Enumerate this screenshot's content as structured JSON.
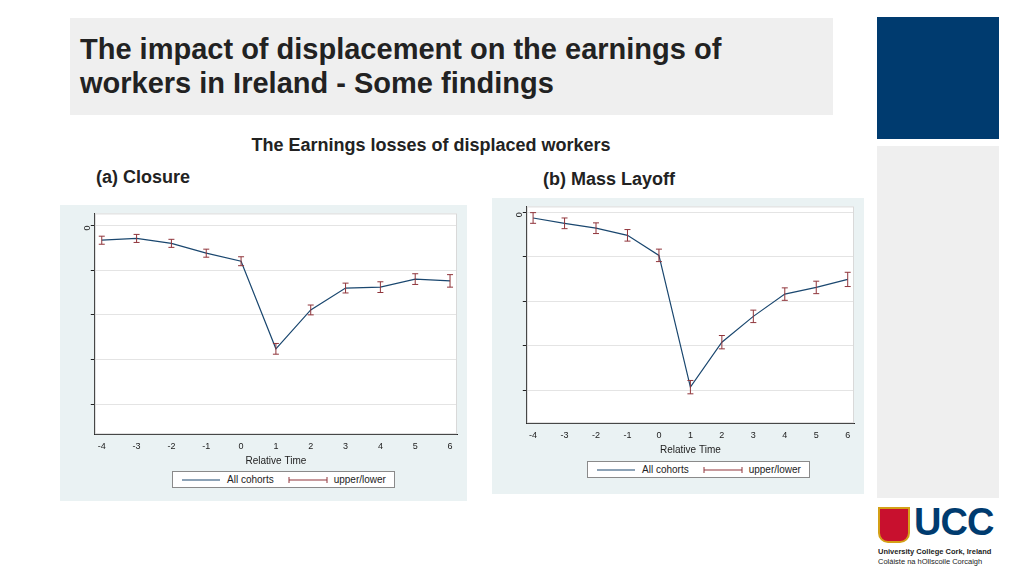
{
  "slide": {
    "title": "The impact of displacement on the earnings of workers in Ireland  - Some findings",
    "subtitle": "The Earnings losses of displaced workers",
    "logo": {
      "text": "UCC",
      "lines": [
        "University College Cork, Ireland",
        "Coláiste na hOllscoile Corcaigh"
      ]
    }
  },
  "chart_data": [
    {
      "type": "line",
      "title": "(a) Closure",
      "x": [
        -4,
        -3,
        -2,
        -1,
        0,
        1,
        2,
        3,
        4,
        5,
        6
      ],
      "x_label": "Relative Time",
      "xlim": [
        -4.2,
        6.2
      ],
      "xticks": [
        -4,
        -3,
        -2,
        -1,
        0,
        1,
        2,
        3,
        4,
        5,
        6
      ],
      "ylim": [
        -4.67,
        0.27
      ],
      "yticks": [
        0,
        {
          "value": -1,
          "label": null
        },
        {
          "value": -2,
          "label": null
        },
        {
          "value": -3,
          "label": null
        },
        {
          "value": -4,
          "label": null
        }
      ],
      "grid": true,
      "legend": "bottom",
      "series": [
        {
          "name": "All cohorts",
          "type": "line",
          "color": "#1a476f",
          "values": [
            -0.33,
            -0.29,
            -0.4,
            -0.62,
            -0.8,
            -2.76,
            -1.89,
            -1.4,
            -1.38,
            -1.2,
            -1.24
          ]
        },
        {
          "name": "upper/lower",
          "type": "errorbar",
          "color": "#90353b",
          "lower": [
            -0.42,
            -0.38,
            -0.49,
            -0.71,
            -0.9,
            -2.88,
            -2.0,
            -1.51,
            -1.5,
            -1.32,
            -1.38
          ],
          "upper": [
            -0.24,
            -0.2,
            -0.31,
            -0.53,
            -0.7,
            -2.64,
            -1.78,
            -1.29,
            -1.26,
            -1.08,
            -1.1
          ]
        }
      ]
    },
    {
      "type": "line",
      "title": "(b) Mass Layoff",
      "x": [
        -4,
        -3,
        -2,
        -1,
        0,
        1,
        2,
        3,
        4,
        5,
        6
      ],
      "x_label": "Relative Time",
      "xlim": [
        -4.2,
        6.2
      ],
      "xticks": [
        -4,
        -3,
        -2,
        -1,
        0,
        1,
        2,
        3,
        4,
        5,
        6
      ],
      "ylim": [
        -4.74,
        0.13
      ],
      "yticks": [
        0,
        {
          "value": -1,
          "label": null
        },
        {
          "value": -2,
          "label": null
        },
        {
          "value": -3,
          "label": null
        },
        {
          "value": -4,
          "label": null
        }
      ],
      "grid": true,
      "legend": "bottom",
      "series": [
        {
          "name": "All cohorts",
          "type": "line",
          "color": "#1a476f",
          "values": [
            -0.13,
            -0.25,
            -0.36,
            -0.52,
            -0.97,
            -3.93,
            -2.92,
            -2.34,
            -1.84,
            -1.69,
            -1.51
          ]
        },
        {
          "name": "upper/lower",
          "type": "errorbar",
          "color": "#90353b",
          "lower": [
            -0.25,
            -0.37,
            -0.48,
            -0.65,
            -1.11,
            -4.08,
            -3.07,
            -2.48,
            -1.98,
            -1.83,
            -1.67
          ],
          "upper": [
            -0.01,
            -0.13,
            -0.24,
            -0.39,
            -0.83,
            -3.78,
            -2.77,
            -2.2,
            -1.7,
            -1.55,
            -1.35
          ]
        }
      ]
    }
  ]
}
